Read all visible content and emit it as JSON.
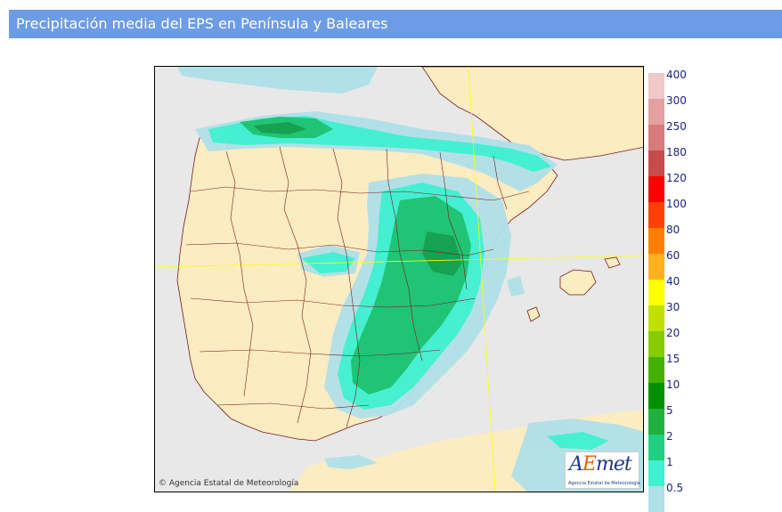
{
  "header": {
    "title": "Precipitación media del EPS en Península y Baleares"
  },
  "map": {
    "copyright": "© Agencia Estatal de Meteorología",
    "logo": {
      "mark_pre": "A",
      "mark_e": "E",
      "mark_post": "met",
      "subtitle": "Agencia Estatal de Meteorología"
    }
  },
  "legend": {
    "labels": [
      "400",
      "300",
      "250",
      "180",
      "120",
      "100",
      "80",
      "60",
      "40",
      "30",
      "20",
      "15",
      "10",
      "5",
      "2",
      "1",
      "0.5"
    ],
    "colors": [
      "#f0c8c8",
      "#e5a0a0",
      "#d67c7c",
      "#c84b4b",
      "#ff0000",
      "#ff4000",
      "#ff8000",
      "#ffb020",
      "#ffff00",
      "#c0e000",
      "#88cc00",
      "#44b000",
      "#009000",
      "#20b040",
      "#20d080",
      "#40f0d0",
      "#b0e0e8"
    ],
    "color_semantic": {
      "land": "#fcecc2",
      "sea": "#e8e8e8",
      "borders": "#7a1a1a",
      "graticule": "#ffff00"
    }
  }
}
